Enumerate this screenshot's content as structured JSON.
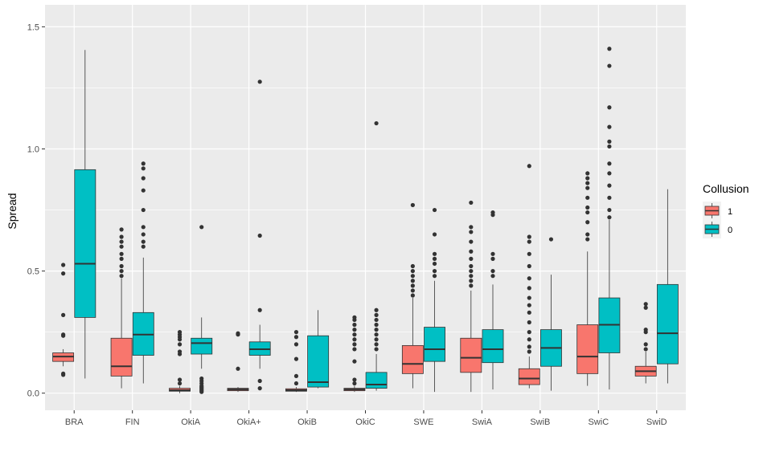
{
  "chart_data": {
    "type": "boxplot",
    "xlabel": "",
    "ylabel": "Spread",
    "ylim": [
      -0.07,
      1.59
    ],
    "yticks": [
      0.0,
      0.5,
      1.0,
      1.5
    ],
    "ytick_labels": [
      "0.0",
      "0.5",
      "1.0",
      "1.5"
    ],
    "grid": true,
    "legend": {
      "title": "Collusion",
      "placement": "right",
      "entries": [
        {
          "key": "1",
          "label": "1",
          "color": "#F8766D"
        },
        {
          "key": "0",
          "label": "0",
          "color": "#00BFC4"
        }
      ]
    },
    "colors": {
      "panel": "#EBEBEB",
      "grid": "#FFFFFF",
      "box_line": "#333333",
      "outlier": "#333333",
      "tick_text": "#4D4D4D"
    },
    "categories": [
      "BRA",
      "FIN",
      "OkiA",
      "OkiA+",
      "OkiB",
      "OkiC",
      "SWE",
      "SwiA",
      "SwiB",
      "SwiC",
      "SwiD"
    ],
    "series": [
      {
        "name": "1",
        "color": "#F8766D",
        "boxes": [
          {
            "category": "BRA",
            "min": 0.11,
            "q1": 0.13,
            "median": 0.15,
            "q3": 0.165,
            "max": 0.18,
            "outliers": [
              0.08,
              0.075,
              0.24,
              0.235,
              0.32,
              0.49,
              0.525
            ]
          },
          {
            "category": "FIN",
            "min": 0.02,
            "q1": 0.07,
            "median": 0.11,
            "q3": 0.225,
            "max": 0.47,
            "outliers": [
              0.48,
              0.5,
              0.52,
              0.55,
              0.57,
              0.6,
              0.62,
              0.64,
              0.67
            ]
          },
          {
            "category": "OkiA",
            "min": 0.0,
            "q1": 0.008,
            "median": 0.012,
            "q3": 0.02,
            "max": 0.03,
            "outliers": [
              0.04,
              0.055,
              0.16,
              0.17,
              0.2,
              0.22,
              0.23,
              0.24,
              0.25
            ]
          },
          {
            "category": "OkiA+",
            "min": 0.005,
            "q1": 0.01,
            "median": 0.015,
            "q3": 0.02,
            "max": 0.025,
            "outliers": [
              0.1,
              0.24,
              0.245
            ]
          },
          {
            "category": "OkiB",
            "min": 0.005,
            "q1": 0.008,
            "median": 0.012,
            "q3": 0.018,
            "max": 0.025,
            "outliers": [
              0.04,
              0.07,
              0.14,
              0.2,
              0.23,
              0.25
            ]
          },
          {
            "category": "OkiC",
            "min": 0.005,
            "q1": 0.01,
            "median": 0.015,
            "q3": 0.02,
            "max": 0.03,
            "outliers": [
              0.04,
              0.055,
              0.13,
              0.18,
              0.2,
              0.22,
              0.24,
              0.26,
              0.28,
              0.3,
              0.31
            ]
          },
          {
            "category": "SWE",
            "min": 0.02,
            "q1": 0.08,
            "median": 0.12,
            "q3": 0.195,
            "max": 0.39,
            "outliers": [
              0.4,
              0.42,
              0.44,
              0.46,
              0.48,
              0.5,
              0.52,
              0.77
            ]
          },
          {
            "category": "SwiA",
            "min": 0.005,
            "q1": 0.085,
            "median": 0.145,
            "q3": 0.225,
            "max": 0.42,
            "outliers": [
              0.44,
              0.46,
              0.48,
              0.5,
              0.52,
              0.55,
              0.58,
              0.62,
              0.66,
              0.68,
              0.78
            ]
          },
          {
            "category": "SwiB",
            "min": 0.02,
            "q1": 0.035,
            "median": 0.06,
            "q3": 0.1,
            "max": 0.15,
            "outliers": [
              0.17,
              0.19,
              0.22,
              0.25,
              0.29,
              0.33,
              0.36,
              0.39,
              0.43,
              0.47,
              0.52,
              0.57,
              0.62,
              0.64,
              0.93
            ]
          },
          {
            "category": "SwiC",
            "min": 0.03,
            "q1": 0.08,
            "median": 0.15,
            "q3": 0.28,
            "max": 0.58,
            "outliers": [
              0.63,
              0.65,
              0.7,
              0.74,
              0.76,
              0.8,
              0.84,
              0.86,
              0.88,
              0.9
            ]
          },
          {
            "category": "SwiD",
            "min": 0.04,
            "q1": 0.07,
            "median": 0.09,
            "q3": 0.11,
            "max": 0.17,
            "outliers": [
              0.18,
              0.2,
              0.25,
              0.26,
              0.35,
              0.365
            ]
          }
        ]
      },
      {
        "name": "0",
        "color": "#00BFC4",
        "boxes": [
          {
            "category": "BRA",
            "min": 0.06,
            "q1": 0.31,
            "median": 0.53,
            "q3": 0.915,
            "max": 1.405,
            "outliers": []
          },
          {
            "category": "FIN",
            "min": 0.04,
            "q1": 0.155,
            "median": 0.24,
            "q3": 0.33,
            "max": 0.555,
            "outliers": [
              0.6,
              0.62,
              0.65,
              0.68,
              0.75,
              0.83,
              0.88,
              0.92,
              0.94
            ]
          },
          {
            "category": "OkiA",
            "min": 0.1,
            "q1": 0.16,
            "median": 0.205,
            "q3": 0.225,
            "max": 0.31,
            "outliers": [
              0.005,
              0.01,
              0.015,
              0.02,
              0.025,
              0.03,
              0.04,
              0.05,
              0.06,
              0.68
            ]
          },
          {
            "category": "OkiA+",
            "min": 0.1,
            "q1": 0.155,
            "median": 0.18,
            "q3": 0.21,
            "max": 0.28,
            "outliers": [
              0.02,
              0.05,
              0.34,
              0.645,
              1.275
            ]
          },
          {
            "category": "OkiB",
            "min": 0.02,
            "q1": 0.025,
            "median": 0.045,
            "q3": 0.235,
            "max": 0.34,
            "outliers": []
          },
          {
            "category": "OkiC",
            "min": 0.01,
            "q1": 0.02,
            "median": 0.035,
            "q3": 0.085,
            "max": 0.16,
            "outliers": [
              0.18,
              0.2,
              0.22,
              0.24,
              0.26,
              0.28,
              0.3,
              0.32,
              0.34,
              1.105
            ]
          },
          {
            "category": "SWE",
            "min": 0.005,
            "q1": 0.13,
            "median": 0.18,
            "q3": 0.27,
            "max": 0.46,
            "outliers": [
              0.48,
              0.5,
              0.53,
              0.55,
              0.57,
              0.65,
              0.75
            ]
          },
          {
            "category": "SwiA",
            "min": 0.015,
            "q1": 0.125,
            "median": 0.18,
            "q3": 0.26,
            "max": 0.445,
            "outliers": [
              0.48,
              0.5,
              0.55,
              0.57,
              0.73,
              0.74
            ]
          },
          {
            "category": "SwiB",
            "min": 0.01,
            "q1": 0.11,
            "median": 0.185,
            "q3": 0.26,
            "max": 0.485,
            "outliers": [
              0.63
            ]
          },
          {
            "category": "SwiC",
            "min": 0.015,
            "q1": 0.165,
            "median": 0.28,
            "q3": 0.39,
            "max": 0.71,
            "outliers": [
              0.72,
              0.75,
              0.8,
              0.85,
              0.9,
              0.94,
              1.01,
              1.03,
              1.09,
              1.17,
              1.34,
              1.41
            ]
          },
          {
            "category": "SwiD",
            "min": 0.04,
            "q1": 0.12,
            "median": 0.245,
            "q3": 0.445,
            "max": 0.835,
            "outliers": []
          }
        ]
      }
    ]
  }
}
